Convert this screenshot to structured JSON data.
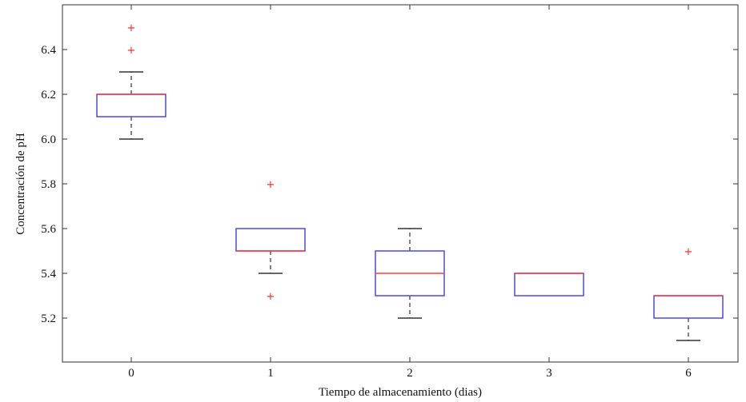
{
  "chart_data": {
    "type": "box",
    "xlabel": "Tiempo de almacenamiento (dias)",
    "ylabel": "Concentración de pH",
    "ylim": [
      5.05,
      6.55
    ],
    "yticks": [
      "5.2",
      "5.4",
      "5.6",
      "5.8",
      "6.0",
      "6.2",
      "6.4"
    ],
    "categories": [
      "0",
      "1",
      "2",
      "3",
      "6"
    ],
    "boxes": [
      {
        "category": "0",
        "whisker_low": 6.0,
        "q1": 6.1,
        "median": 6.2,
        "q3": 6.2,
        "whisker_high": 6.3,
        "outliers": [
          6.4,
          6.5
        ]
      },
      {
        "category": "1",
        "whisker_low": 5.4,
        "q1": 5.5,
        "median": 5.5,
        "q3": 5.6,
        "whisker_high": 5.6,
        "outliers": [
          5.3,
          5.8
        ]
      },
      {
        "category": "2",
        "whisker_low": 5.2,
        "q1": 5.3,
        "median": 5.4,
        "q3": 5.5,
        "whisker_high": 5.6,
        "outliers": []
      },
      {
        "category": "3",
        "whisker_low": 5.3,
        "q1": 5.3,
        "median": 5.4,
        "q3": 5.4,
        "whisker_high": 5.4,
        "outliers": []
      },
      {
        "category": "6",
        "whisker_low": 5.1,
        "q1": 5.2,
        "median": 5.3,
        "q3": 5.3,
        "whisker_high": 5.3,
        "outliers": [
          5.5
        ]
      }
    ],
    "colors": {
      "box": "#4a4ae0",
      "median": "#ff3b3b",
      "whisker": "#333333",
      "outlier": "#ff2020",
      "axis": "#333333"
    }
  }
}
